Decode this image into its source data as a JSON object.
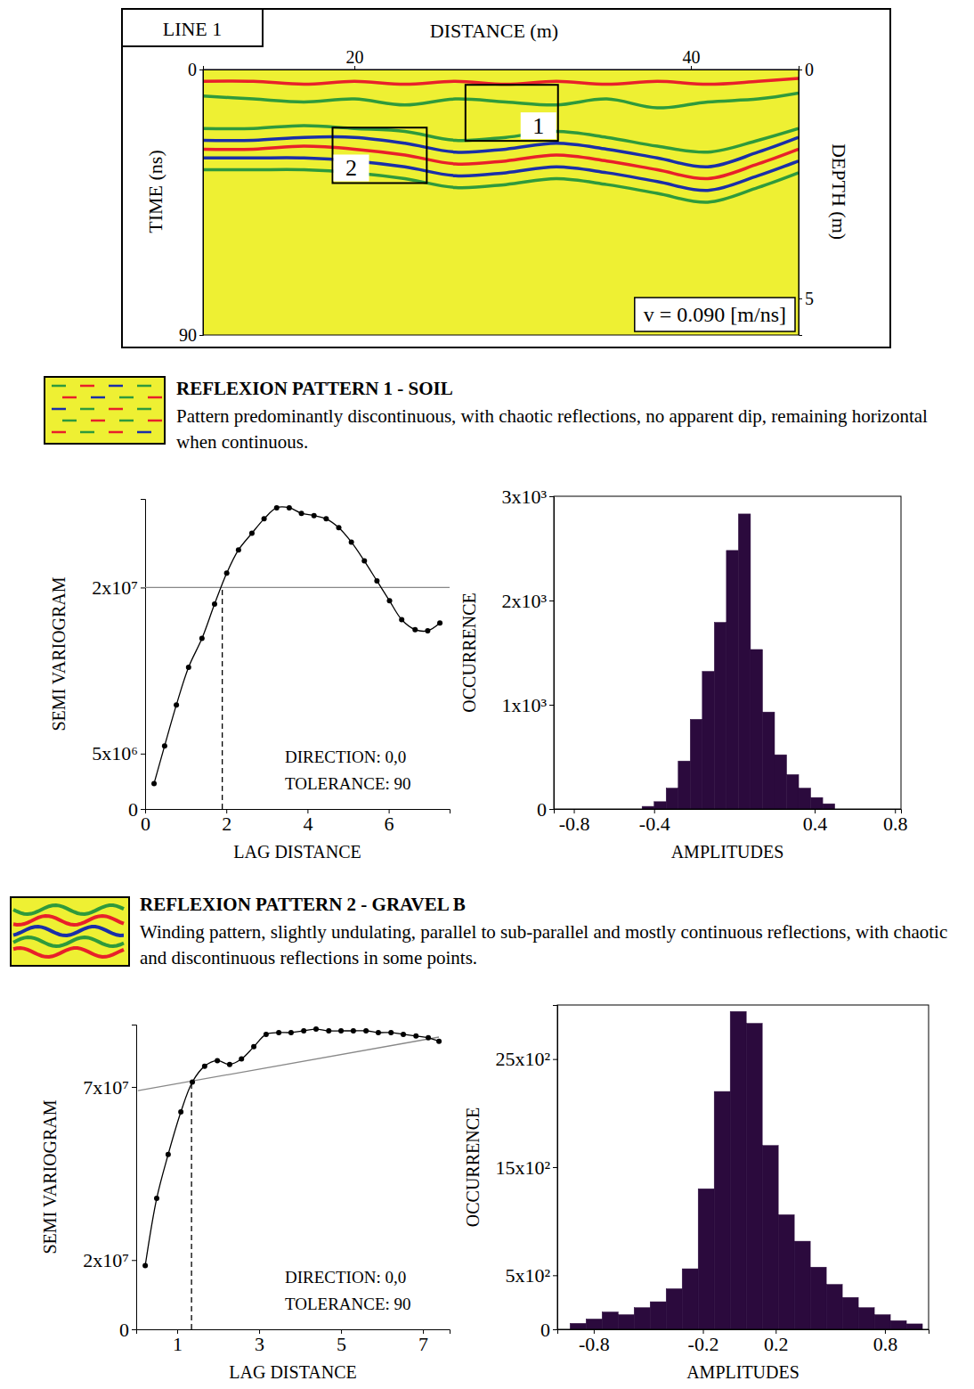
{
  "chart_data": [
    {
      "type": "radargram",
      "title": "LINE 1",
      "x_label": "DISTANCE (m)",
      "y_label": "TIME (ns)",
      "y2_label": "DEPTH (m)",
      "xlim": [
        11,
        46.4
      ],
      "xticks": [
        20,
        40
      ],
      "ylim": [
        0,
        90
      ],
      "yticks": [
        0,
        90
      ],
      "y2lim": [
        0,
        5.8
      ],
      "y2ticks": [
        0,
        5
      ],
      "annotation": "v = 0.090 [m/ns]",
      "boxes": [
        {
          "label": "1",
          "x": [
            26.6,
            32.1
          ],
          "y": [
            5.2,
            24.2
          ]
        },
        {
          "label": "2",
          "x": [
            18.7,
            24.3
          ],
          "y": [
            19.7,
            38.5
          ]
        }
      ],
      "reflectors": [
        {
          "color": "#e8202a",
          "x": [
            11,
            14,
            17,
            20,
            23,
            26,
            29,
            32,
            35,
            38,
            41,
            44,
            46.4
          ],
          "values": [
            4,
            4,
            5,
            4,
            5,
            4,
            5,
            4,
            5,
            4,
            5,
            4,
            3
          ]
        },
        {
          "color": "#2f9a3c",
          "x": [
            11,
            14,
            17,
            20,
            23,
            26,
            29,
            32,
            35,
            38,
            41,
            44,
            46.4
          ],
          "values": [
            9,
            10,
            11,
            10,
            12,
            10,
            11,
            12,
            10,
            13,
            11,
            10,
            8
          ]
        },
        {
          "color": "#2f9a3c",
          "x": [
            11,
            14,
            17,
            20,
            23,
            26,
            29,
            32,
            35,
            38,
            41,
            44,
            46.4
          ],
          "values": [
            20,
            20,
            19,
            20,
            21,
            24,
            23,
            21,
            23,
            26,
            28,
            24,
            20
          ]
        },
        {
          "color": "#1a2fa8",
          "x": [
            11,
            14,
            17,
            20,
            23,
            26,
            29,
            32,
            35,
            38,
            41,
            44,
            46.4
          ],
          "values": [
            24,
            24,
            23,
            23,
            25,
            28,
            27,
            25,
            27,
            30,
            33,
            28,
            23
          ]
        },
        {
          "color": "#e8202a",
          "x": [
            11,
            14,
            17,
            20,
            23,
            26,
            29,
            32,
            35,
            38,
            41,
            44,
            46.4
          ],
          "values": [
            27,
            27,
            26,
            27,
            29,
            32,
            31,
            29,
            31,
            34,
            37,
            32,
            27
          ]
        },
        {
          "color": "#1a2fa8",
          "x": [
            11,
            14,
            17,
            20,
            23,
            26,
            29,
            32,
            35,
            38,
            41,
            44,
            46.4
          ],
          "values": [
            30,
            30,
            30,
            31,
            33,
            36,
            35,
            33,
            35,
            38,
            41,
            36,
            31
          ]
        },
        {
          "color": "#2f9a3c",
          "x": [
            11,
            14,
            17,
            20,
            23,
            26,
            29,
            32,
            35,
            38,
            41,
            44,
            46.4
          ],
          "values": [
            34,
            34,
            34,
            35,
            37,
            40,
            39,
            37,
            39,
            42,
            45,
            40,
            35
          ]
        }
      ]
    },
    {
      "type": "line",
      "title": "REFLEXION PATTERN 1 - SOIL",
      "subtitle": "Pattern predominantly discontinuous, with chaotic reflections, no apparent dip, remaining horizontal when continuous.",
      "x_label": "LAG DISTANCE",
      "y_label": "SEMI VARIOGRAM",
      "color": "#000000",
      "marker": "circle",
      "x": [
        0.22,
        0.48,
        0.77,
        1.07,
        1.4,
        1.71,
        2.01,
        2.3,
        2.63,
        2.93,
        3.24,
        3.55,
        3.85,
        4.16,
        4.46,
        4.77,
        5.08,
        5.4,
        5.71,
        6.02,
        6.32,
        6.65,
        6.96,
        7.26
      ],
      "values": [
        2300000,
        5700000,
        9400000,
        12800000,
        15400000,
        18500000,
        21300000,
        23400000,
        24900000,
        26200000,
        27200000,
        27200000,
        26700000,
        26500000,
        26200000,
        25400000,
        24100000,
        22400000,
        20600000,
        18800000,
        17100000,
        16200000,
        16100000,
        16800000
      ],
      "xlim": [
        0,
        7.5
      ],
      "xticks": [
        0,
        2,
        4,
        6
      ],
      "ylim": [
        0,
        28000000
      ],
      "yticks": [
        0,
        {
          "value": 5000000,
          "label": "5x10⁶"
        },
        {
          "value": 20000000,
          "label": "2x10⁷"
        }
      ],
      "sill": 20000000,
      "range": 1.9,
      "annotations": [
        "DIRECTION: 0,0",
        "TOLERANCE: 90"
      ]
    },
    {
      "type": "histogram",
      "x_label": "AMPLITUDES",
      "y_label": "OCCURRENCE",
      "color": "#2b0a3d",
      "bins": [
        -0.46,
        -0.4,
        -0.34,
        -0.28,
        -0.22,
        -0.16,
        -0.1,
        -0.04,
        0.02,
        0.08,
        0.14,
        0.2,
        0.26,
        0.32,
        0.38,
        0.44,
        0.5
      ],
      "values": [
        25,
        70,
        200,
        460,
        860,
        1320,
        1790,
        2480,
        2830,
        1530,
        930,
        520,
        330,
        200,
        110,
        50
      ],
      "xlim": [
        -0.9,
        0.83
      ],
      "xticks": [
        -0.8,
        -0.4,
        0.4,
        0.8
      ],
      "ylim": [
        0,
        3000
      ],
      "yticks": [
        0,
        {
          "value": 1000,
          "label": "1x10³"
        },
        {
          "value": 2000,
          "label": "2x10³"
        },
        {
          "value": 3000,
          "label": "3x10³"
        }
      ]
    },
    {
      "type": "line",
      "title": "REFLEXION PATTERN 2 - GRAVEL B",
      "subtitle": "Winding pattern, slightly undulating, parallel to sub-parallel and mostly continuous reflections, with chaotic and discontinuous reflections in some points.",
      "x_label": "LAG DISTANCE",
      "y_label": "SEMI VARIOGRAM",
      "color": "#000000",
      "marker": "circle",
      "x": [
        0.22,
        0.5,
        0.78,
        1.09,
        1.37,
        1.67,
        1.98,
        2.28,
        2.57,
        2.87,
        3.17,
        3.48,
        3.78,
        4.09,
        4.39,
        4.7,
        5.0,
        5.3,
        5.61,
        5.91,
        6.22,
        6.52,
        6.83,
        7.13,
        7.39
      ],
      "values": [
        18400000,
        37800000,
        50500000,
        62800000,
        71400000,
        76000000,
        77600000,
        76500000,
        78100000,
        81600000,
        85200000,
        85700000,
        85700000,
        86200000,
        86700000,
        86200000,
        86200000,
        86200000,
        86200000,
        85700000,
        85700000,
        85200000,
        84700000,
        84200000,
        83200000
      ],
      "xlim": [
        0,
        7.65
      ],
      "xticks": [
        1,
        3,
        5,
        7
      ],
      "ylim": [
        0,
        88000000
      ],
      "yticks": [
        0,
        {
          "value": 20000000,
          "label": "2x10⁷"
        },
        {
          "value": 70000000,
          "label": "7x10⁷"
        }
      ],
      "sill_line": {
        "x": [
          0.04,
          7.39
        ],
        "values": [
          68900000,
          84400000
        ]
      },
      "range": 1.35,
      "annotations": [
        "DIRECTION: 0,0",
        "TOLERANCE: 90"
      ]
    },
    {
      "type": "histogram",
      "x_label": "AMPLITUDES",
      "y_label": "OCCURRENCE",
      "color": "#2b0a3d",
      "bins": [
        -0.93,
        -0.842,
        -0.754,
        -0.666,
        -0.578,
        -0.49,
        -0.402,
        -0.314,
        -0.226,
        -0.138,
        -0.05,
        0.038,
        0.126,
        0.214,
        0.302,
        0.39,
        0.478,
        0.566,
        0.654,
        0.742,
        0.83,
        0.918,
        1.006
      ],
      "values": [
        55,
        95,
        160,
        135,
        200,
        255,
        375,
        560,
        1300,
        2200,
        2940,
        2830,
        1700,
        1060,
        815,
        575,
        415,
        295,
        200,
        135,
        80,
        50
      ],
      "xlim": [
        -1.0,
        1.04
      ],
      "xticks": [
        -0.8,
        -0.2,
        0.2,
        0.8
      ],
      "ylim": [
        0,
        3000
      ],
      "yticks": [
        0,
        {
          "value": 500,
          "label": "5x10²"
        },
        {
          "value": 1500,
          "label": "15x10²"
        },
        {
          "value": 2500,
          "label": "25x10²"
        }
      ]
    }
  ]
}
